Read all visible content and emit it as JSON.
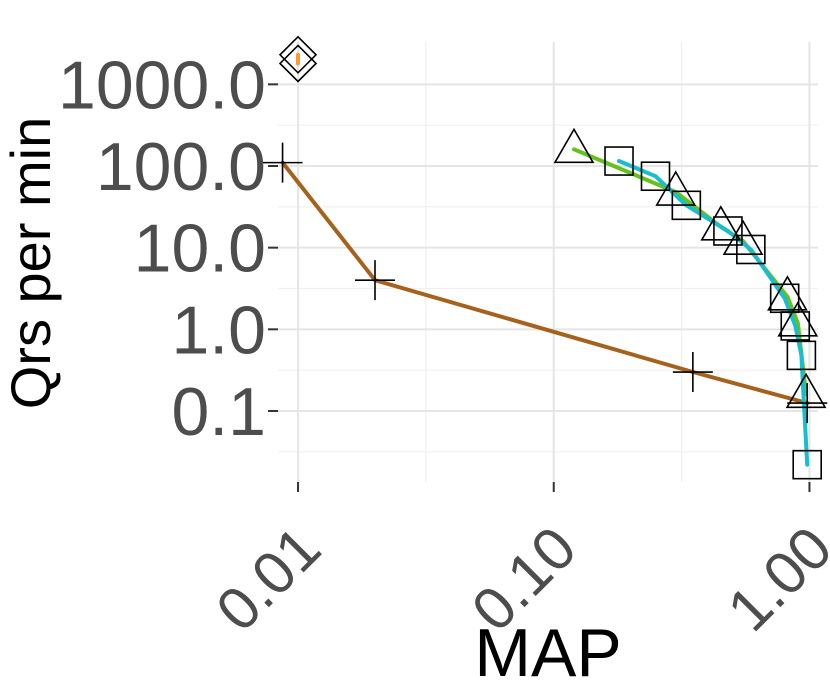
{
  "chart_data": {
    "type": "line",
    "xlabel": "MAP",
    "ylabel": "Qrs per min",
    "x_scale": "log10",
    "y_scale": "log10",
    "xlim": [
      0.00835,
      1.08
    ],
    "ylim": [
      0.0135,
      3300
    ],
    "x_ticks": [
      {
        "value": 0.01,
        "label": "0.01"
      },
      {
        "value": 0.1,
        "label": "0.10"
      },
      {
        "value": 1.0,
        "label": "1.00"
      }
    ],
    "y_ticks": [
      {
        "value": 0.1,
        "label": "0.1"
      },
      {
        "value": 1.0,
        "label": "1.0"
      },
      {
        "value": 10.0,
        "label": "10.0"
      },
      {
        "value": 100.0,
        "label": "100.0"
      },
      {
        "value": 1000.0,
        "label": "1000.0"
      }
    ],
    "grid": true,
    "legend": "none",
    "series": [
      {
        "marker": "plus",
        "color": "#a6611a",
        "points": [
          [
            0.0087,
            110
          ],
          [
            0.02,
            4.0
          ],
          [
            0.35,
            0.3
          ],
          [
            0.98,
            0.125
          ]
        ]
      },
      {
        "marker": "triangle",
        "color": "#66c21a",
        "points": [
          [
            0.12,
            160
          ],
          [
            0.3,
            48
          ],
          [
            0.45,
            18
          ],
          [
            0.55,
            12
          ],
          [
            0.82,
            2.5
          ],
          [
            0.9,
            1.2
          ],
          [
            0.97,
            0.16
          ]
        ]
      },
      {
        "marker": "square",
        "color": "#17becf",
        "points": [
          [
            0.18,
            115
          ],
          [
            0.25,
            75
          ],
          [
            0.33,
            33
          ],
          [
            0.48,
            16
          ],
          [
            0.59,
            9.5
          ],
          [
            0.8,
            2.4
          ],
          [
            0.88,
            1.1
          ],
          [
            0.93,
            0.48
          ],
          [
            0.98,
            0.022
          ]
        ]
      },
      {
        "marker": "diamond",
        "color": "#ff9933",
        "points": [
          [
            0.01,
            2300
          ],
          [
            0.01,
            1800
          ]
        ]
      }
    ]
  }
}
